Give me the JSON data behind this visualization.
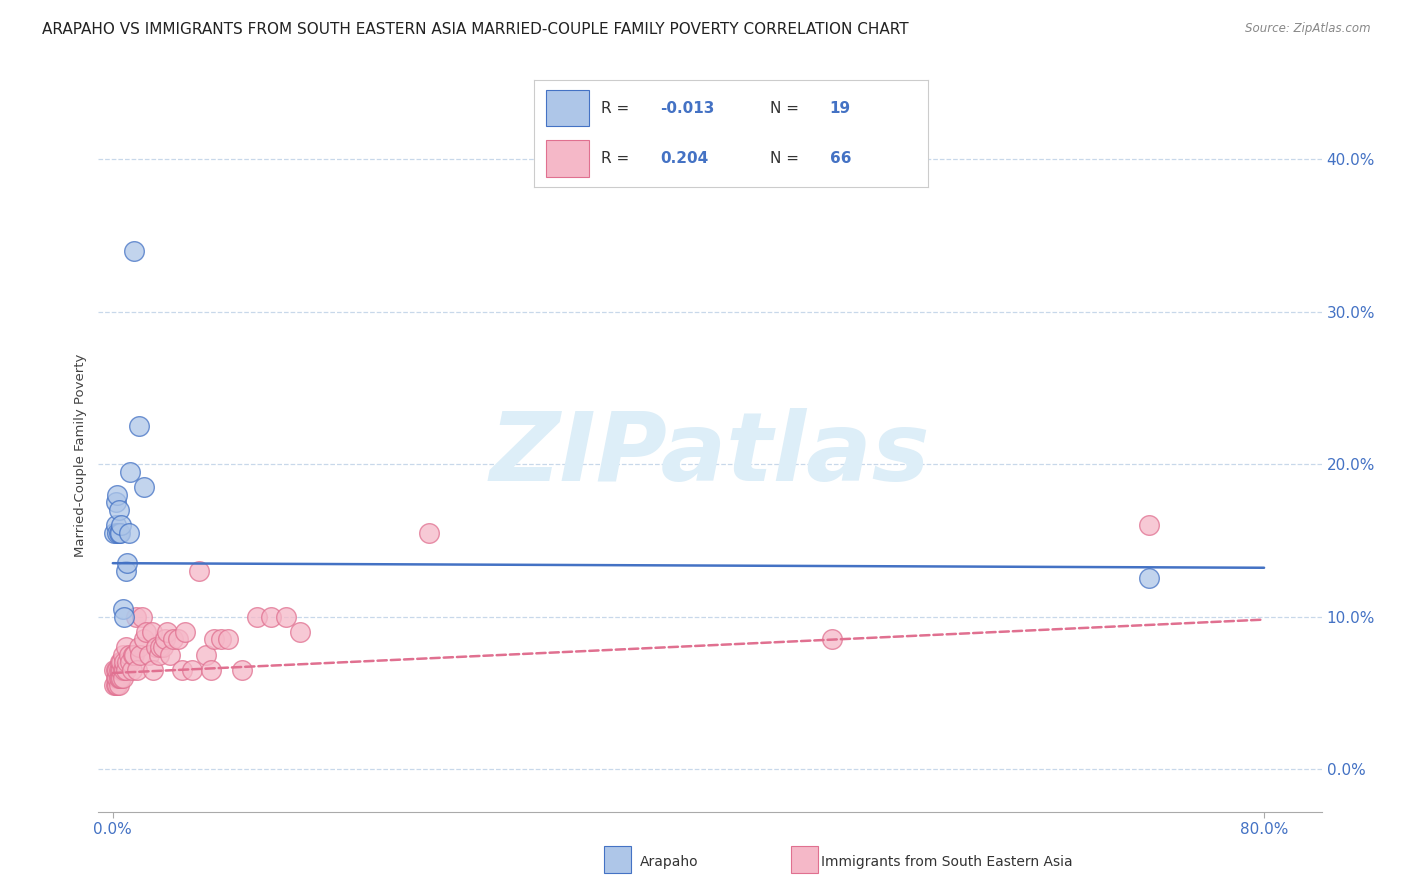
{
  "title": "ARAPAHO VS IMMIGRANTS FROM SOUTH EASTERN ASIA MARRIED-COUPLE FAMILY POVERTY CORRELATION CHART",
  "source": "Source: ZipAtlas.com",
  "ylabel": "Married-Couple Family Poverty",
  "xlim": [
    -0.01,
    0.84
  ],
  "ylim": [
    -0.028,
    0.44
  ],
  "x_tick_positions": [
    0.0,
    0.8
  ],
  "x_tick_labels": [
    "0.0%",
    "80.0%"
  ],
  "y_tick_positions": [
    0.0,
    0.1,
    0.2,
    0.3,
    0.4
  ],
  "y_tick_labels": [
    "0.0%",
    "10.0%",
    "20.0%",
    "30.0%",
    "40.0%"
  ],
  "arapaho_color": "#aec6e8",
  "immigrants_color": "#f5b8c8",
  "arapaho_edge_color": "#4472c4",
  "immigrants_edge_color": "#e07090",
  "arapaho_line_color": "#4472c4",
  "immigrants_line_color": "#e07090",
  "watermark_color": "#ddeef8",
  "grid_color": "#c8d8ea",
  "background_color": "#ffffff",
  "legend_r1": "-0.013",
  "legend_n1": "19",
  "legend_r2": "0.204",
  "legend_n2": "66",
  "arapaho_x": [
    0.001,
    0.002,
    0.002,
    0.003,
    0.003,
    0.004,
    0.004,
    0.005,
    0.006,
    0.007,
    0.008,
    0.009,
    0.01,
    0.011,
    0.012,
    0.015,
    0.018,
    0.022,
    0.72
  ],
  "arapaho_y": [
    0.155,
    0.16,
    0.175,
    0.155,
    0.18,
    0.17,
    0.155,
    0.155,
    0.16,
    0.105,
    0.1,
    0.13,
    0.135,
    0.155,
    0.195,
    0.34,
    0.225,
    0.185,
    0.125
  ],
  "immigrants_x": [
    0.001,
    0.001,
    0.002,
    0.002,
    0.002,
    0.003,
    0.003,
    0.003,
    0.004,
    0.004,
    0.004,
    0.005,
    0.005,
    0.005,
    0.006,
    0.006,
    0.006,
    0.007,
    0.007,
    0.007,
    0.008,
    0.008,
    0.009,
    0.009,
    0.01,
    0.011,
    0.012,
    0.013,
    0.014,
    0.015,
    0.016,
    0.017,
    0.018,
    0.019,
    0.02,
    0.022,
    0.023,
    0.025,
    0.027,
    0.028,
    0.03,
    0.032,
    0.033,
    0.035,
    0.036,
    0.038,
    0.04,
    0.042,
    0.045,
    0.048,
    0.05,
    0.055,
    0.06,
    0.065,
    0.068,
    0.07,
    0.075,
    0.08,
    0.09,
    0.1,
    0.11,
    0.12,
    0.13,
    0.22,
    0.5,
    0.72
  ],
  "immigrants_y": [
    0.055,
    0.065,
    0.055,
    0.06,
    0.065,
    0.055,
    0.06,
    0.065,
    0.055,
    0.06,
    0.065,
    0.06,
    0.065,
    0.07,
    0.06,
    0.065,
    0.07,
    0.065,
    0.06,
    0.075,
    0.065,
    0.07,
    0.065,
    0.08,
    0.07,
    0.075,
    0.07,
    0.065,
    0.075,
    0.075,
    0.1,
    0.065,
    0.08,
    0.075,
    0.1,
    0.085,
    0.09,
    0.075,
    0.09,
    0.065,
    0.08,
    0.075,
    0.08,
    0.08,
    0.085,
    0.09,
    0.075,
    0.085,
    0.085,
    0.065,
    0.09,
    0.065,
    0.13,
    0.075,
    0.065,
    0.085,
    0.085,
    0.085,
    0.065,
    0.1,
    0.1,
    0.1,
    0.09,
    0.155,
    0.085,
    0.16
  ],
  "arapaho_trend_x": [
    0.0,
    0.8
  ],
  "arapaho_trend_y": [
    0.135,
    0.132
  ],
  "immigrants_trend_x": [
    0.0,
    0.8
  ],
  "immigrants_trend_y": [
    0.063,
    0.098
  ]
}
